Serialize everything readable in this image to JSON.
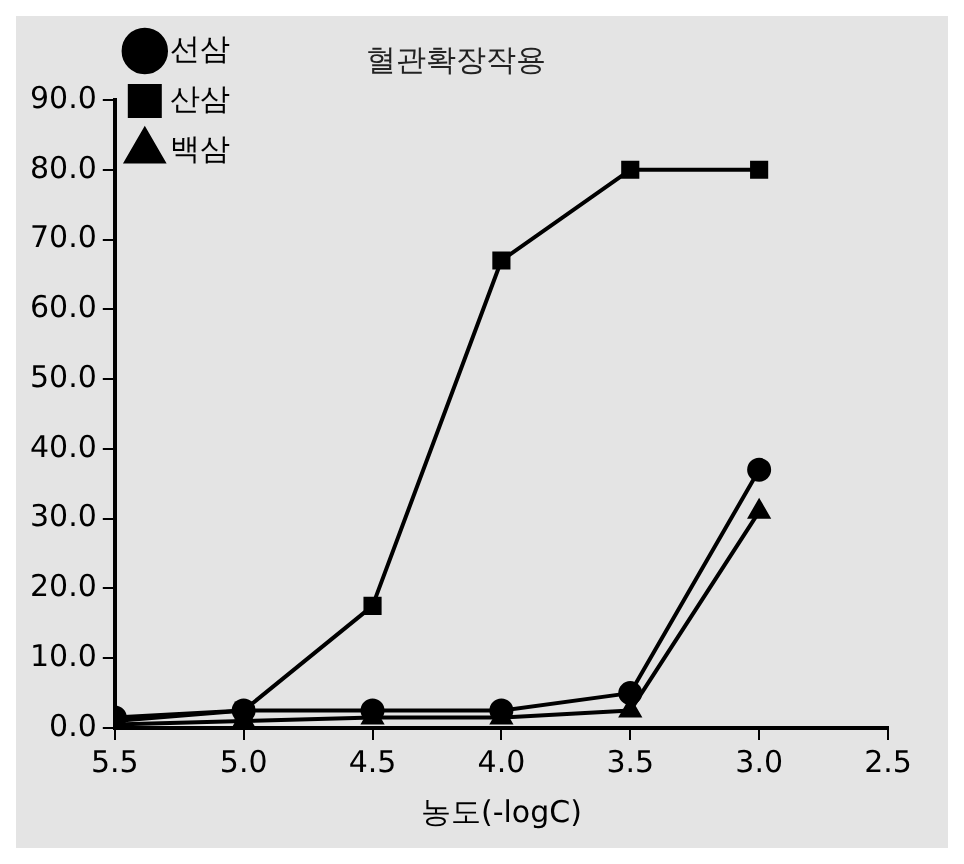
{
  "chart_data": {
    "type": "line",
    "title": "혈관확장작용",
    "xlabel": "농도(-logC)",
    "x": [
      5.5,
      5.0,
      4.5,
      4.0,
      3.5,
      3.0
    ],
    "series": [
      {
        "name": "선삼",
        "color": "#000000",
        "marker": "circle",
        "values": [
          1.5,
          2.5,
          2.5,
          2.5,
          5,
          37
        ]
      },
      {
        "name": "산삼",
        "color": "#000000",
        "marker": "square",
        "values": [
          1,
          2.5,
          17.5,
          67,
          80,
          80
        ]
      },
      {
        "name": "백삼",
        "color": "#000000",
        "marker": "triangle",
        "values": [
          0.5,
          1,
          1.5,
          1.5,
          2.5,
          31
        ]
      }
    ],
    "xlim": [
      5.5,
      2.5
    ],
    "xticks": [
      {
        "value": 5.5,
        "label": "5.5"
      },
      {
        "value": 5.0,
        "label": "5.0"
      },
      {
        "value": 4.5,
        "label": "4.5"
      },
      {
        "value": 4.0,
        "label": "4.0"
      },
      {
        "value": 3.5,
        "label": "3.5"
      },
      {
        "value": 3.0,
        "label": "3.0"
      },
      {
        "value": 2.5,
        "label": "2.5"
      }
    ],
    "ylim": [
      0,
      90
    ],
    "yticks": [
      {
        "value": 0,
        "label": "0.0"
      },
      {
        "value": 10,
        "label": "10.0"
      },
      {
        "value": 20,
        "label": "20.0"
      },
      {
        "value": 30,
        "label": "30.0"
      },
      {
        "value": 40,
        "label": "40.0"
      },
      {
        "value": 50,
        "label": "50.0"
      },
      {
        "value": 60,
        "label": "60.0"
      },
      {
        "value": 70,
        "label": "70.0"
      },
      {
        "value": 80,
        "label": "80.0"
      },
      {
        "value": 90,
        "label": "90.0"
      }
    ],
    "grid": false,
    "legend": "top left",
    "line_style": "solid"
  }
}
